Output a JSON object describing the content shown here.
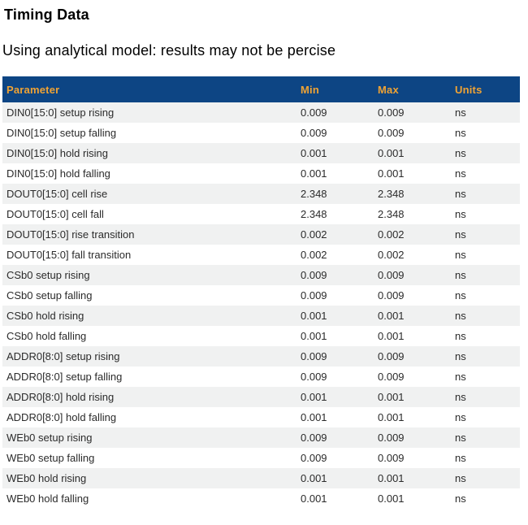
{
  "page": {
    "title": "Timing Data",
    "subtitle": "Using analytical model: results may not be percise"
  },
  "table": {
    "columns": [
      "Parameter",
      "Min",
      "Max",
      "Units"
    ],
    "rows": [
      {
        "parameter": "DIN0[15:0] setup rising",
        "min": "0.009",
        "max": "0.009",
        "units": "ns"
      },
      {
        "parameter": "DIN0[15:0] setup falling",
        "min": "0.009",
        "max": "0.009",
        "units": "ns"
      },
      {
        "parameter": "DIN0[15:0] hold rising",
        "min": "0.001",
        "max": "0.001",
        "units": "ns"
      },
      {
        "parameter": "DIN0[15:0] hold falling",
        "min": "0.001",
        "max": "0.001",
        "units": "ns"
      },
      {
        "parameter": "DOUT0[15:0] cell rise",
        "min": "2.348",
        "max": "2.348",
        "units": "ns"
      },
      {
        "parameter": "DOUT0[15:0] cell fall",
        "min": "2.348",
        "max": "2.348",
        "units": "ns"
      },
      {
        "parameter": "DOUT0[15:0] rise transition",
        "min": "0.002",
        "max": "0.002",
        "units": "ns"
      },
      {
        "parameter": "DOUT0[15:0] fall transition",
        "min": "0.002",
        "max": "0.002",
        "units": "ns"
      },
      {
        "parameter": "CSb0 setup rising",
        "min": "0.009",
        "max": "0.009",
        "units": "ns"
      },
      {
        "parameter": "CSb0 setup falling",
        "min": "0.009",
        "max": "0.009",
        "units": "ns"
      },
      {
        "parameter": "CSb0 hold rising",
        "min": "0.001",
        "max": "0.001",
        "units": "ns"
      },
      {
        "parameter": "CSb0 hold falling",
        "min": "0.001",
        "max": "0.001",
        "units": "ns"
      },
      {
        "parameter": "ADDR0[8:0] setup rising",
        "min": "0.009",
        "max": "0.009",
        "units": "ns"
      },
      {
        "parameter": "ADDR0[8:0] setup falling",
        "min": "0.009",
        "max": "0.009",
        "units": "ns"
      },
      {
        "parameter": "ADDR0[8:0] hold rising",
        "min": "0.001",
        "max": "0.001",
        "units": "ns"
      },
      {
        "parameter": "ADDR0[8:0] hold falling",
        "min": "0.001",
        "max": "0.001",
        "units": "ns"
      },
      {
        "parameter": "WEb0 setup rising",
        "min": "0.009",
        "max": "0.009",
        "units": "ns"
      },
      {
        "parameter": "WEb0 setup falling",
        "min": "0.009",
        "max": "0.009",
        "units": "ns"
      },
      {
        "parameter": "WEb0 hold rising",
        "min": "0.001",
        "max": "0.001",
        "units": "ns"
      },
      {
        "parameter": "WEb0 hold falling",
        "min": "0.001",
        "max": "0.001",
        "units": "ns"
      }
    ]
  },
  "colors": {
    "header_bg": "#0d4584",
    "header_text": "#f0a334",
    "row_alt_bg": "#f0f1f1",
    "row_text": "#2b2b2b",
    "title_text": "#000000"
  }
}
